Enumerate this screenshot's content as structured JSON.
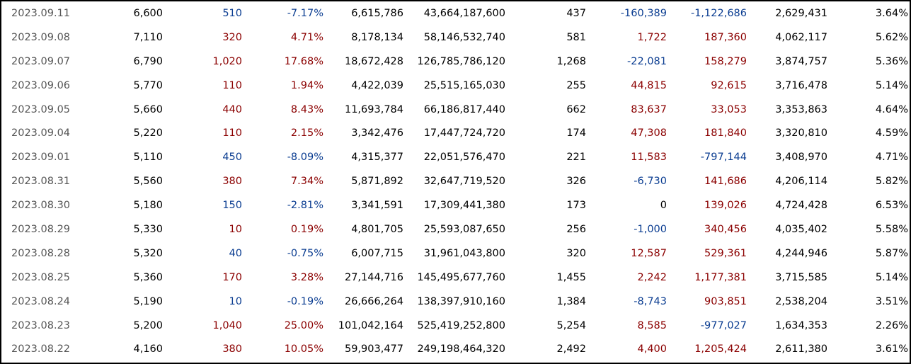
{
  "table": {
    "rows": [
      {
        "cells": [
          "2023.09.11",
          "6,600",
          "510",
          "-7.17%",
          "6,615,786",
          "43,664,187,600",
          "437",
          "-160,389",
          "-1,122,686",
          "2,629,431",
          "3.64%"
        ],
        "colors": [
          "#555555",
          "#000000",
          "#0b3d91",
          "#0b3d91",
          "#000000",
          "#000000",
          "#000000",
          "#0b3d91",
          "#0b3d91",
          "#000000",
          "#000000"
        ]
      },
      {
        "cells": [
          "2023.09.08",
          "7,110",
          "320",
          "4.71%",
          "8,178,134",
          "58,146,532,740",
          "581",
          "1,722",
          "187,360",
          "4,062,117",
          "5.62%"
        ],
        "colors": [
          "#555555",
          "#000000",
          "#8b0000",
          "#8b0000",
          "#000000",
          "#000000",
          "#000000",
          "#8b0000",
          "#8b0000",
          "#000000",
          "#000000"
        ]
      },
      {
        "cells": [
          "2023.09.07",
          "6,790",
          "1,020",
          "17.68%",
          "18,672,428",
          "126,785,786,120",
          "1,268",
          "-22,081",
          "158,279",
          "3,874,757",
          "5.36%"
        ],
        "colors": [
          "#555555",
          "#000000",
          "#8b0000",
          "#8b0000",
          "#000000",
          "#000000",
          "#000000",
          "#0b3d91",
          "#8b0000",
          "#000000",
          "#000000"
        ]
      },
      {
        "cells": [
          "2023.09.06",
          "5,770",
          "110",
          "1.94%",
          "4,422,039",
          "25,515,165,030",
          "255",
          "44,815",
          "92,615",
          "3,716,478",
          "5.14%"
        ],
        "colors": [
          "#555555",
          "#000000",
          "#8b0000",
          "#8b0000",
          "#000000",
          "#000000",
          "#000000",
          "#8b0000",
          "#8b0000",
          "#000000",
          "#000000"
        ]
      },
      {
        "cells": [
          "2023.09.05",
          "5,660",
          "440",
          "8.43%",
          "11,693,784",
          "66,186,817,440",
          "662",
          "83,637",
          "33,053",
          "3,353,863",
          "4.64%"
        ],
        "colors": [
          "#555555",
          "#000000",
          "#8b0000",
          "#8b0000",
          "#000000",
          "#000000",
          "#000000",
          "#8b0000",
          "#8b0000",
          "#000000",
          "#000000"
        ]
      },
      {
        "cells": [
          "2023.09.04",
          "5,220",
          "110",
          "2.15%",
          "3,342,476",
          "17,447,724,720",
          "174",
          "47,308",
          "181,840",
          "3,320,810",
          "4.59%"
        ],
        "colors": [
          "#555555",
          "#000000",
          "#8b0000",
          "#8b0000",
          "#000000",
          "#000000",
          "#000000",
          "#8b0000",
          "#8b0000",
          "#000000",
          "#000000"
        ]
      },
      {
        "cells": [
          "2023.09.01",
          "5,110",
          "450",
          "-8.09%",
          "4,315,377",
          "22,051,576,470",
          "221",
          "11,583",
          "-797,144",
          "3,408,970",
          "4.71%"
        ],
        "colors": [
          "#555555",
          "#000000",
          "#0b3d91",
          "#0b3d91",
          "#000000",
          "#000000",
          "#000000",
          "#8b0000",
          "#0b3d91",
          "#000000",
          "#000000"
        ]
      },
      {
        "cells": [
          "2023.08.31",
          "5,560",
          "380",
          "7.34%",
          "5,871,892",
          "32,647,719,520",
          "326",
          "-6,730",
          "141,686",
          "4,206,114",
          "5.82%"
        ],
        "colors": [
          "#555555",
          "#000000",
          "#8b0000",
          "#8b0000",
          "#000000",
          "#000000",
          "#000000",
          "#0b3d91",
          "#8b0000",
          "#000000",
          "#000000"
        ]
      },
      {
        "cells": [
          "2023.08.30",
          "5,180",
          "150",
          "-2.81%",
          "3,341,591",
          "17,309,441,380",
          "173",
          "0",
          "139,026",
          "4,724,428",
          "6.53%"
        ],
        "colors": [
          "#555555",
          "#000000",
          "#0b3d91",
          "#0b3d91",
          "#000000",
          "#000000",
          "#000000",
          "#000000",
          "#8b0000",
          "#000000",
          "#000000"
        ]
      },
      {
        "cells": [
          "2023.08.29",
          "5,330",
          "10",
          "0.19%",
          "4,801,705",
          "25,593,087,650",
          "256",
          "-1,000",
          "340,456",
          "4,035,402",
          "5.58%"
        ],
        "colors": [
          "#555555",
          "#000000",
          "#8b0000",
          "#8b0000",
          "#000000",
          "#000000",
          "#000000",
          "#0b3d91",
          "#8b0000",
          "#000000",
          "#000000"
        ]
      },
      {
        "cells": [
          "2023.08.28",
          "5,320",
          "40",
          "-0.75%",
          "6,007,715",
          "31,961,043,800",
          "320",
          "12,587",
          "529,361",
          "4,244,946",
          "5.87%"
        ],
        "colors": [
          "#555555",
          "#000000",
          "#0b3d91",
          "#0b3d91",
          "#000000",
          "#000000",
          "#000000",
          "#8b0000",
          "#8b0000",
          "#000000",
          "#000000"
        ]
      },
      {
        "cells": [
          "2023.08.25",
          "5,360",
          "170",
          "3.28%",
          "27,144,716",
          "145,495,677,760",
          "1,455",
          "2,242",
          "1,177,381",
          "3,715,585",
          "5.14%"
        ],
        "colors": [
          "#555555",
          "#000000",
          "#8b0000",
          "#8b0000",
          "#000000",
          "#000000",
          "#000000",
          "#8b0000",
          "#8b0000",
          "#000000",
          "#000000"
        ]
      },
      {
        "cells": [
          "2023.08.24",
          "5,190",
          "10",
          "-0.19%",
          "26,666,264",
          "138,397,910,160",
          "1,384",
          "-8,743",
          "903,851",
          "2,538,204",
          "3.51%"
        ],
        "colors": [
          "#555555",
          "#000000",
          "#0b3d91",
          "#0b3d91",
          "#000000",
          "#000000",
          "#000000",
          "#0b3d91",
          "#8b0000",
          "#000000",
          "#000000"
        ]
      },
      {
        "cells": [
          "2023.08.23",
          "5,200",
          "1,040",
          "25.00%",
          "101,042,164",
          "525,419,252,800",
          "5,254",
          "8,585",
          "-977,027",
          "1,634,353",
          "2.26%"
        ],
        "colors": [
          "#555555",
          "#000000",
          "#8b0000",
          "#8b0000",
          "#000000",
          "#000000",
          "#000000",
          "#8b0000",
          "#0b3d91",
          "#000000",
          "#000000"
        ]
      },
      {
        "cells": [
          "2023.08.22",
          "4,160",
          "380",
          "10.05%",
          "59,903,477",
          "249,198,464,320",
          "2,492",
          "4,400",
          "1,205,424",
          "2,611,380",
          "3.61%"
        ],
        "colors": [
          "#555555",
          "#000000",
          "#8b0000",
          "#8b0000",
          "#000000",
          "#000000",
          "#000000",
          "#8b0000",
          "#8b0000",
          "#000000",
          "#000000"
        ]
      }
    ]
  }
}
